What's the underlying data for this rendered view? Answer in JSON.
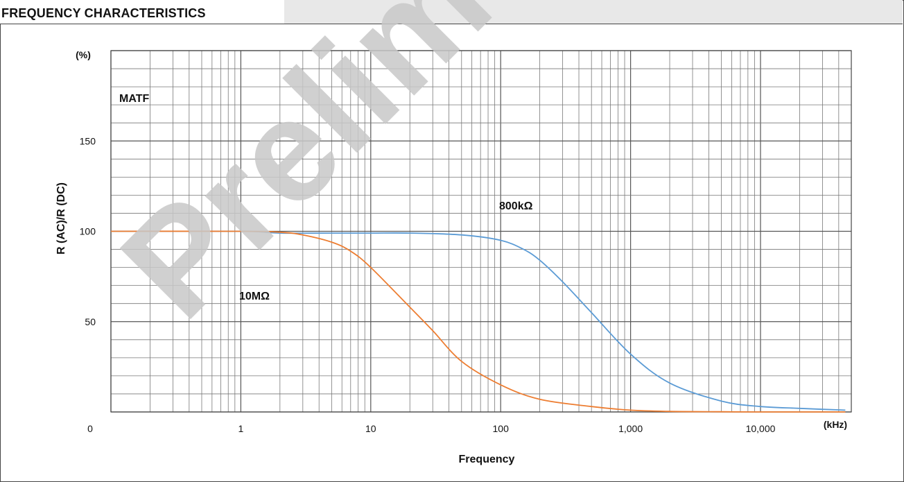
{
  "header": {
    "title": "FREQUENCY CHARACTERISTICS"
  },
  "chart_data": {
    "type": "line",
    "xlabel": "Frequency",
    "ylabel": "R (AC)/R (DC)",
    "x_unit": "(kHz)",
    "y_unit": "(%)",
    "annotation": "MATF",
    "x_scale": "log",
    "xlim": [
      0.1,
      50000
    ],
    "ylim": [
      0,
      200
    ],
    "x_ticks": [
      {
        "value": 0.1,
        "label": "0"
      },
      {
        "value": 1,
        "label": "1"
      },
      {
        "value": 10,
        "label": "10"
      },
      {
        "value": 100,
        "label": "100"
      },
      {
        "value": 1000,
        "label": "1,000"
      },
      {
        "value": 10000,
        "label": "10,000"
      }
    ],
    "y_ticks": [
      {
        "value": 50,
        "label": "50"
      },
      {
        "value": 100,
        "label": "100"
      },
      {
        "value": 150,
        "label": "150"
      }
    ],
    "grid": true,
    "series": [
      {
        "name": "800kΩ",
        "color": "#5b9bd5",
        "x": [
          0.1,
          1,
          2,
          5,
          10,
          20,
          50,
          100,
          150,
          200,
          300,
          500,
          1000,
          2000,
          5000,
          10000,
          20000,
          45000
        ],
        "y": [
          100,
          100,
          99,
          99,
          99,
          99,
          98,
          95,
          90,
          84,
          72,
          55,
          32,
          16,
          6,
          3,
          2,
          1
        ]
      },
      {
        "name": "10MΩ",
        "color": "#ed7d31",
        "x": [
          0.1,
          1,
          2,
          3,
          5,
          7,
          10,
          20,
          30,
          50,
          100,
          200,
          500,
          1000,
          2000,
          5000,
          10000,
          45000
        ],
        "y": [
          100,
          100,
          99.5,
          98,
          94,
          89,
          80,
          58,
          45,
          28,
          15,
          7,
          3,
          1,
          0.3,
          0.1,
          0,
          0
        ]
      }
    ]
  }
}
